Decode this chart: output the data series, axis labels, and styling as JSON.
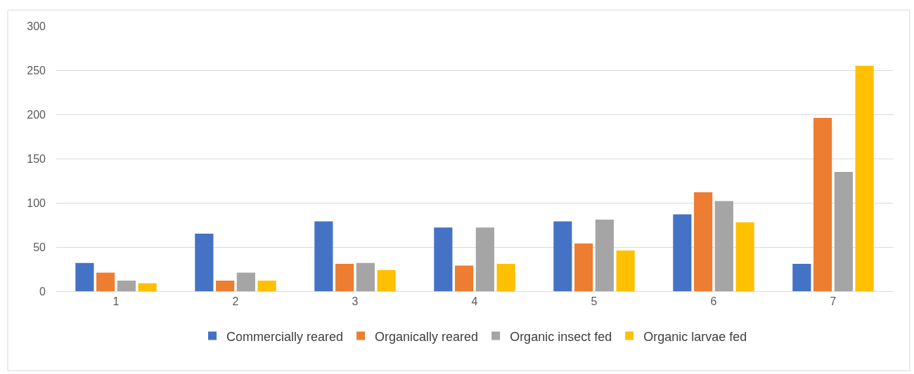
{
  "chart_data": {
    "type": "bar",
    "categories": [
      "1",
      "2",
      "3",
      "4",
      "5",
      "6",
      "7"
    ],
    "series": [
      {
        "name": "Commercially reared",
        "color": "#4472c4",
        "values": [
          32,
          65,
          79,
          72,
          79,
          87,
          31
        ]
      },
      {
        "name": "Organically reared",
        "color": "#ed7d31",
        "values": [
          21,
          12,
          31,
          29,
          54,
          112,
          196
        ]
      },
      {
        "name": "Organic insect fed",
        "color": "#a5a5a5",
        "values": [
          12,
          21,
          32,
          72,
          81,
          102,
          135
        ]
      },
      {
        "name": "Organic larvae fed",
        "color": "#ffc000",
        "values": [
          9,
          12,
          24,
          31,
          46,
          78,
          255
        ]
      }
    ],
    "ylim": [
      0,
      300
    ],
    "yticks": [
      0,
      50,
      100,
      150,
      200,
      250,
      300
    ],
    "grid": "y",
    "legend": "bottom"
  }
}
